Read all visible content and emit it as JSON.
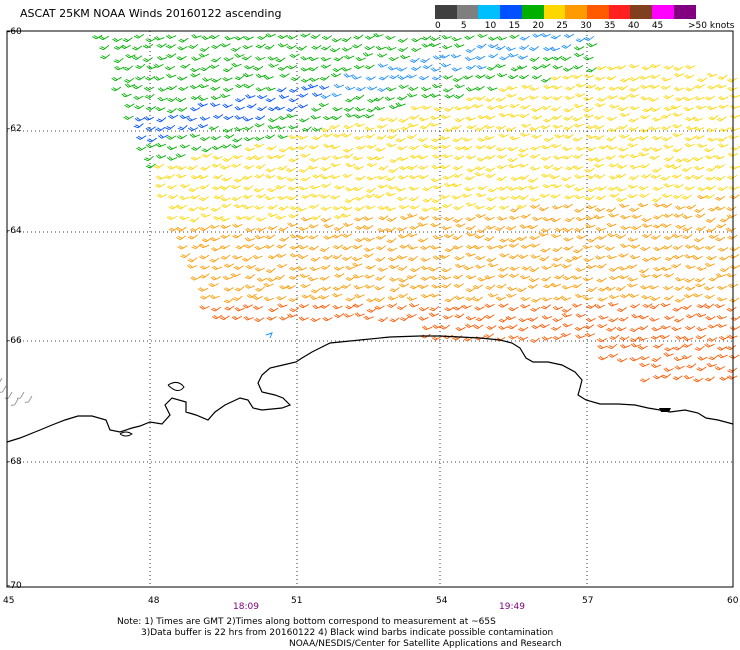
{
  "title": "ASCAT 25KM NOAA Winds 20160122 ascending",
  "legend": {
    "unit_label": ">50 knots",
    "ticks": [
      "0",
      "5",
      "10",
      "15",
      "20",
      "25",
      "30",
      "35",
      "40",
      "45"
    ],
    "colors": [
      "#404040",
      "#7f7f7f",
      "#00bfff",
      "#0050ff",
      "#00b000",
      "#ffd700",
      "#ff9a00",
      "#ff5a00",
      "#ff2020",
      "#804020",
      "#ff00ff",
      "#800080"
    ]
  },
  "axes": {
    "lat_labels": [
      "-60",
      "-62",
      "-64",
      "-66",
      "-68",
      "-70"
    ],
    "lon_labels": [
      "45",
      "48",
      "51",
      "54",
      "57",
      "60"
    ]
  },
  "pass_times": [
    "18:09",
    "19:49"
  ],
  "notes": [
    "Note: 1) Times are GMT 2)Times along bottom correspond to measurement at ~65S",
    "3)Data buffer is 22 hrs from 20160122 4) Black wind barbs indicate possible contamination",
    "NOAA/NESDIS/Center for Satellite Applications and Research"
  ]
}
